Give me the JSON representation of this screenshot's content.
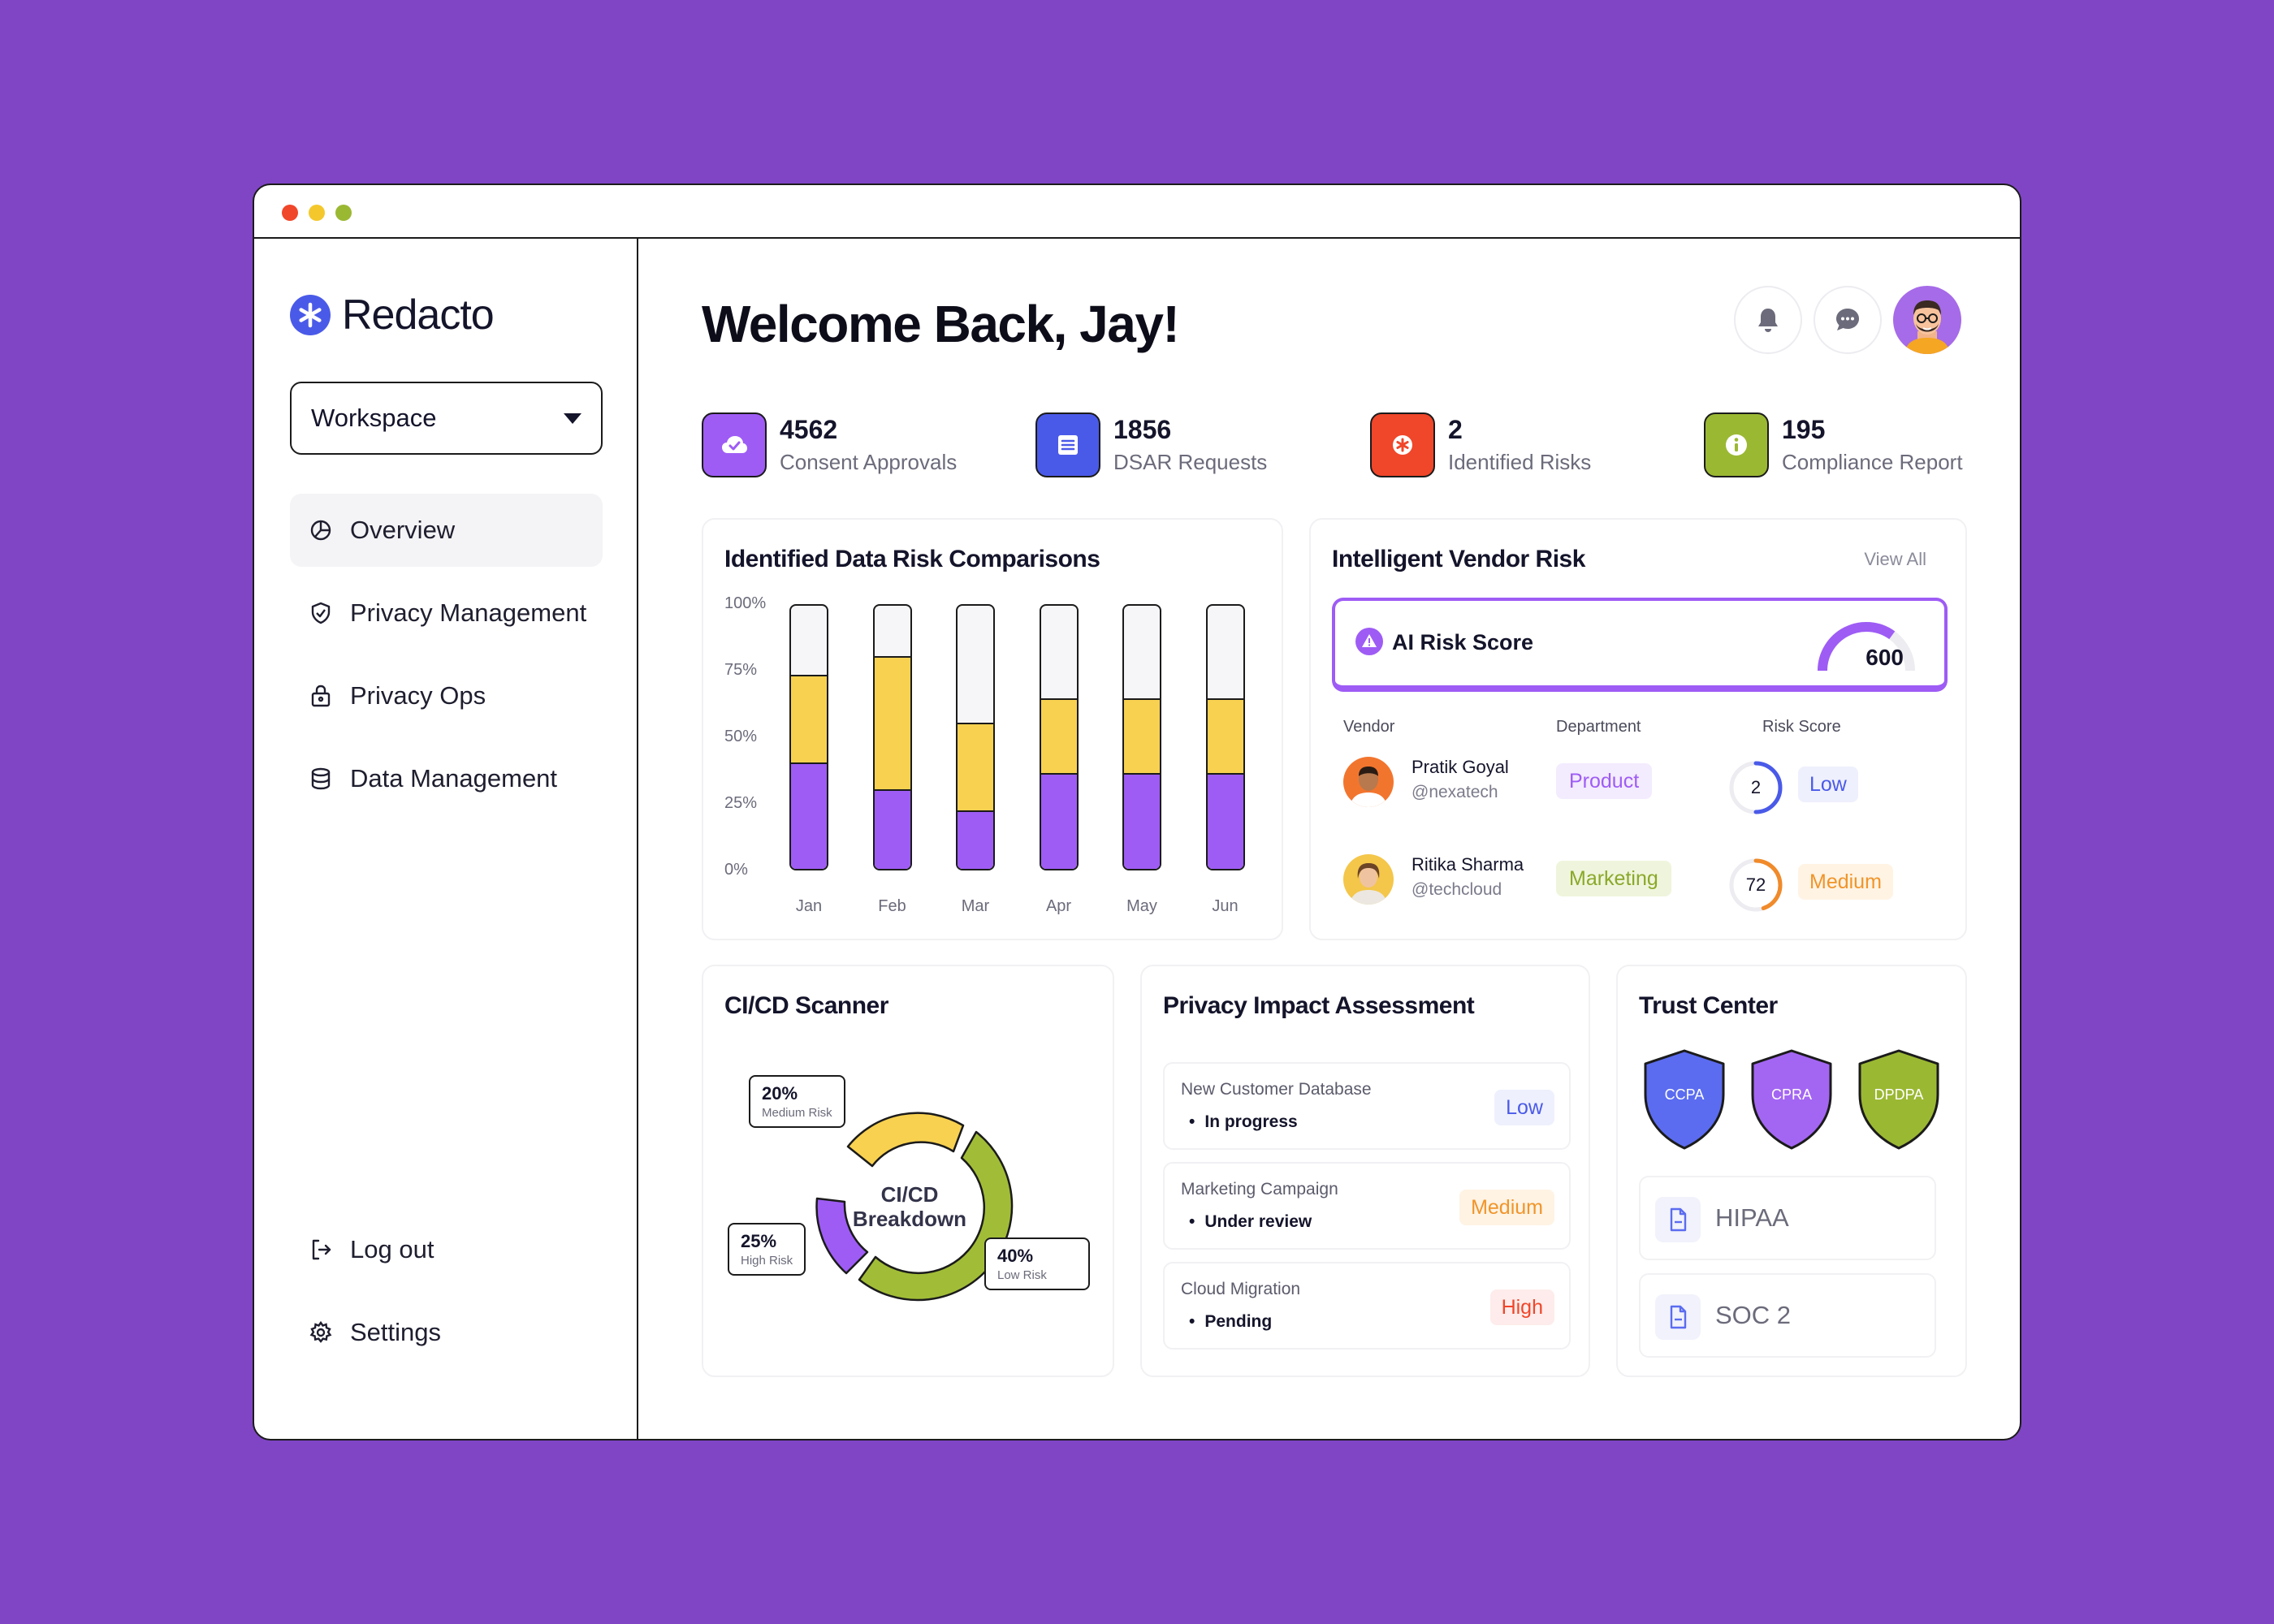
{
  "app": {
    "name": "Redacto"
  },
  "sidebar": {
    "workspace_label": "Workspace",
    "items": [
      {
        "label": "Overview",
        "icon": "overview-icon",
        "active": true
      },
      {
        "label": "Privacy Management",
        "icon": "shield-check-icon"
      },
      {
        "label": "Privacy Ops",
        "icon": "lock-bag-icon"
      },
      {
        "label": "Data Management",
        "icon": "database-icon"
      }
    ],
    "bottom": [
      {
        "label": "Log out",
        "icon": "logout-icon"
      },
      {
        "label": "Settings",
        "icon": "gear-icon"
      }
    ]
  },
  "header": {
    "welcome": "Welcome Back, Jay!"
  },
  "stats": [
    {
      "value": "4562",
      "label": "Consent Approvals",
      "color": "#9e5cf5",
      "icon": "cloud-check-icon"
    },
    {
      "value": "1856",
      "label": "DSAR Requests",
      "color": "#4a5ae8",
      "icon": "document-lines-icon"
    },
    {
      "value": "2",
      "label": "Identified Risks",
      "color": "#f0462a",
      "icon": "asterisk-icon"
    },
    {
      "value": "195",
      "label": "Compliance Report",
      "color": "#9bb833",
      "icon": "info-icon"
    }
  ],
  "risk_chart": {
    "title": "Identified Data Risk Comparisons",
    "chart_data": {
      "type": "bar",
      "stacked": true,
      "categories": [
        "Jan",
        "Feb",
        "Mar",
        "Apr",
        "May",
        "Jun"
      ],
      "yticks": [
        "100%",
        "75%",
        "50%",
        "25%",
        "0%"
      ],
      "ylim": [
        0,
        100
      ],
      "series": [
        {
          "values": [
            40,
            30,
            22,
            36,
            36,
            36
          ],
          "color": "#9e5cf5"
        },
        {
          "values": [
            33,
            50,
            33,
            28,
            28,
            28
          ],
          "color": "#f8d150"
        }
      ]
    }
  },
  "vendor_risk": {
    "title": "Intelligent Vendor Risk",
    "view_all": "View All",
    "ai_label": "AI Risk Score",
    "ai_score": "600",
    "ai_fraction": 0.7,
    "headers": {
      "vendor": "Vendor",
      "department": "Department",
      "risk": "Risk Score"
    },
    "rows": [
      {
        "name": "Pratik Goyal",
        "handle": "@nexatech",
        "department": "Product",
        "dept_color": "#9e5cf5",
        "dept_bg": "#f3ebfe",
        "score": "2",
        "score_fraction": 0.5,
        "ring_color": "#4a5ae8",
        "level": "Low",
        "level_color": "#4a5ae8",
        "level_bg": "#eef0fd"
      },
      {
        "name": "Ritika Sharma",
        "handle": "@techcloud",
        "department": "Marketing",
        "dept_color": "#8aa82a",
        "dept_bg": "#eff5dc",
        "score": "72",
        "score_fraction": 0.45,
        "ring_color": "#f08a2a",
        "level": "Medium",
        "level_color": "#f0952a",
        "level_bg": "#fff3e4"
      }
    ]
  },
  "cicd": {
    "title": "CI/CD Scanner",
    "center_line1": "CI/CD",
    "center_line2": "Breakdown",
    "segments": [
      {
        "pct": "20%",
        "label": "Medium Risk",
        "color": "#f8d150"
      },
      {
        "pct": "40%",
        "label": "Low Risk",
        "color": "#a1bd37"
      },
      {
        "pct": "25%",
        "label": "High Risk",
        "color": "#9e5cf5"
      }
    ]
  },
  "pia": {
    "title": "Privacy Impact Assessment",
    "rows": [
      {
        "name": "New Customer Database",
        "status": "In progress",
        "level": "Low",
        "level_color": "#4a5ae8",
        "level_bg": "#eef0fd"
      },
      {
        "name": "Marketing Campaign",
        "status": "Under review",
        "level": "Medium",
        "level_color": "#f0952a",
        "level_bg": "#fff3e4"
      },
      {
        "name": "Cloud Migration",
        "status": "Pending",
        "level": "High",
        "level_color": "#f0462a",
        "level_bg": "#fdeceb"
      }
    ]
  },
  "trust": {
    "title": "Trust Center",
    "badges": [
      {
        "label": "CCPA",
        "color": "#5b6cf0"
      },
      {
        "label": "CPRA",
        "color": "#a366f2"
      },
      {
        "label": "DPDPA",
        "color": "#9bb833"
      }
    ],
    "docs": [
      {
        "label": "HIPAA"
      },
      {
        "label": "SOC 2"
      }
    ]
  }
}
